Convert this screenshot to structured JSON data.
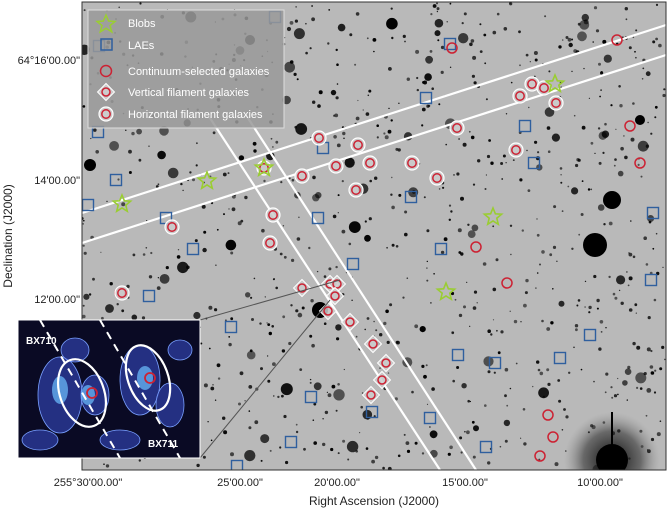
{
  "axes": {
    "xlabel": "Right Ascension (J2000)",
    "ylabel": "Declination (J2000)",
    "x_ticks": [
      "255°30'00.00\"",
      "25'00.00\"",
      "20'00.00\"",
      "15'00.00\"",
      "10'00.00\""
    ],
    "y_ticks": [
      "64°16'00.00\"",
      "14'00.00\"",
      "12'00.00\""
    ]
  },
  "legend": {
    "items": [
      {
        "label": "Blobs",
        "marker": "star",
        "color": "#9acd32"
      },
      {
        "label": "LAEs",
        "marker": "square",
        "color": "#2f5f9e"
      },
      {
        "label": "Continuum-selected galaxies",
        "marker": "circle",
        "color": "#cc2233"
      },
      {
        "label": "Vertical filament galaxies",
        "marker": "diamond",
        "color": "#cc2233"
      },
      {
        "label": "Horizontal filament galaxies",
        "marker": "circle-halo",
        "color": "#cc2233"
      }
    ]
  },
  "inset": {
    "label_top": "BX710",
    "label_bottom": "BX711"
  },
  "colors": {
    "sky": "#b9b9b9",
    "blob": "#9acd32",
    "lae": "#2f5f9e",
    "galaxy": "#cc2233",
    "inset_bg": "#0a0a24"
  }
}
